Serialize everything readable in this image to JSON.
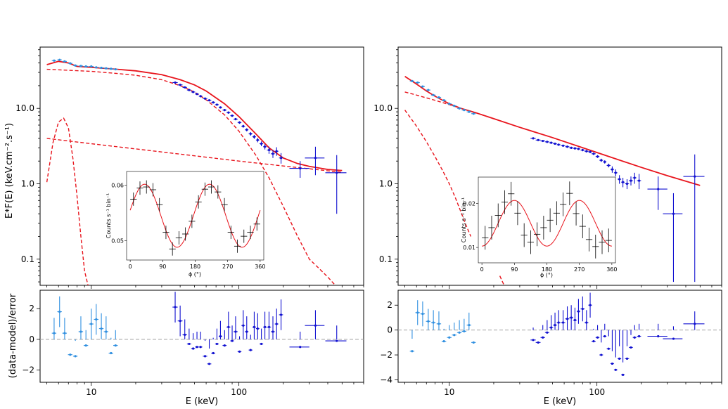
{
  "colors": {
    "model": "#e8141c",
    "data_low": "#2f8fe0",
    "data_high": "#1010d0",
    "inset_data": "#000000",
    "zero_line": "#a0a0a0"
  },
  "chart_data": [
    {
      "panel": "left-spectrum",
      "type": "line",
      "xscale": "log",
      "yscale": "log",
      "xlim": [
        4.5,
        700
      ],
      "ylim": [
        0.045,
        65
      ],
      "ylabel": "E*F(E) (keV.cm⁻².s⁻¹)",
      "yticks": [
        0.1,
        1.0,
        10.0
      ],
      "ytick_labels": [
        "0.1",
        "1.0",
        "10.0"
      ],
      "model_total": {
        "x": [
          5,
          6,
          7,
          8,
          10,
          15,
          20,
          30,
          40,
          50,
          60,
          80,
          100,
          130,
          160,
          200,
          250,
          300,
          400,
          500
        ],
        "y": [
          38,
          42,
          40,
          36,
          35,
          33,
          31.5,
          28,
          24,
          20.5,
          17,
          11.5,
          7.8,
          4.6,
          3.0,
          2.2,
          1.85,
          1.7,
          1.55,
          1.5
        ]
      },
      "model_cutoff": {
        "x": [
          5,
          7,
          10,
          15,
          20,
          30,
          40,
          50,
          60,
          80,
          100,
          130,
          160,
          200,
          250,
          300,
          350,
          400,
          450
        ],
        "y": [
          33,
          32,
          31,
          29,
          27.5,
          24,
          20,
          16.5,
          13,
          8.2,
          5.0,
          2.4,
          1.2,
          0.5,
          0.2,
          0.1,
          0.075,
          0.058,
          0.045
        ]
      },
      "model_powerlaw": {
        "x": [
          5,
          10,
          20,
          50,
          100,
          200,
          500
        ],
        "y": [
          4.0,
          3.4,
          2.9,
          2.35,
          2.0,
          1.72,
          1.42
        ]
      },
      "model_bump": {
        "x": [
          5,
          5.5,
          6,
          6.5,
          7,
          7.5,
          8,
          8.5,
          9,
          9.5
        ],
        "y": [
          1.05,
          3.5,
          6.6,
          7.4,
          5.5,
          2.2,
          0.7,
          0.2,
          0.07,
          0.045
        ]
      },
      "series_low": {
        "x": [
          5.6,
          6.1,
          6.6,
          7.2,
          7.8,
          8.5,
          9.2,
          10,
          10.8,
          11.7,
          12.6,
          13.6,
          14.6
        ],
        "y": [
          43,
          44,
          42,
          39.5,
          37,
          36.5,
          36,
          36,
          35,
          34.5,
          34,
          33.5,
          33
        ]
      },
      "series_high": {
        "x": [
          37,
          40,
          43,
          46,
          49,
          52,
          55,
          59,
          63,
          67,
          71,
          75,
          80,
          85,
          90,
          95,
          101,
          107,
          113,
          120,
          127,
          134,
          142,
          150,
          160,
          170,
          180,
          193,
          260,
          330,
          460
        ],
        "xerr": [
          1.5,
          1.5,
          1.5,
          1.5,
          1.5,
          1.5,
          1.5,
          2,
          2,
          2,
          2,
          2,
          2.5,
          2.5,
          2.5,
          3,
          3,
          3,
          3,
          3.5,
          3.5,
          3.5,
          4,
          4,
          5,
          5,
          5,
          6,
          40,
          50,
          75
        ],
        "y": [
          22,
          20.5,
          19,
          17.5,
          16.5,
          15.5,
          14.5,
          13.5,
          12.8,
          12,
          11.2,
          10.3,
          9.5,
          8.8,
          8.0,
          7.2,
          6.5,
          5.8,
          5.2,
          4.6,
          4.2,
          3.8,
          3.4,
          3.1,
          2.8,
          2.5,
          2.7,
          2.2,
          1.6,
          2.2,
          1.4
        ],
        "yerr": [
          0.4,
          0.4,
          0.4,
          0.4,
          0.4,
          0.4,
          0.35,
          0.35,
          0.35,
          0.3,
          0.3,
          0.3,
          0.3,
          0.3,
          0.25,
          0.25,
          0.25,
          0.25,
          0.25,
          0.25,
          0.25,
          0.25,
          0.25,
          0.25,
          0.3,
          0.3,
          0.35,
          0.35,
          0.4,
          0.9,
          1.0
        ]
      },
      "inset": {
        "xlabel": "ϕ (°)",
        "ylabel": "Counts s⁻¹ bin⁻¹",
        "xlim": [
          -10,
          370
        ],
        "ylim": [
          0.0465,
          0.0625
        ],
        "xticks": [
          0,
          90,
          180,
          270,
          360
        ],
        "yticks": [
          0.05,
          0.06
        ],
        "ytick_labels": [
          "0.05",
          "0.06"
        ],
        "points": {
          "x": [
            9,
            27,
            45,
            63,
            81,
            99,
            117,
            135,
            153,
            171,
            189,
            207,
            225,
            243,
            261,
            279,
            297,
            315,
            333,
            351
          ],
          "y": [
            0.0575,
            0.0595,
            0.0597,
            0.0592,
            0.0565,
            0.0515,
            0.0485,
            0.0505,
            0.0512,
            0.0535,
            0.057,
            0.0593,
            0.0597,
            0.0588,
            0.0565,
            0.0515,
            0.049,
            0.0508,
            0.0515,
            0.053
          ],
          "xerr": 9,
          "yerr": 0.0012
        },
        "model": {
          "mean": 0.0545,
          "amplitude": 0.0057,
          "phase_peak": 40,
          "cycles": 2
        }
      }
    },
    {
      "panel": "left-residuals",
      "type": "scatter",
      "xscale": "log",
      "xlim": [
        4.5,
        700
      ],
      "ylim": [
        -2.8,
        3.2
      ],
      "xlabel": "E (keV)",
      "ylabel": "(data-model)/error",
      "xticks": [
        10,
        100
      ],
      "xtick_labels": [
        "10",
        "100"
      ],
      "yticks": [
        -2,
        0,
        2
      ],
      "ytick_labels": [
        "−2",
        "0",
        "2"
      ],
      "series_low": {
        "x": [
          5.6,
          6.1,
          6.6,
          7.2,
          7.8,
          8.5,
          9.2,
          10,
          10.8,
          11.7,
          12.6,
          13.6,
          14.6
        ],
        "y": [
          0.4,
          1.8,
          0.4,
          -1.0,
          -1.1,
          0.5,
          -0.4,
          1.0,
          1.3,
          0.7,
          0.5,
          -0.9,
          -0.4
        ]
      },
      "series_high": {
        "x": [
          37,
          40,
          43,
          46,
          49,
          52,
          55,
          59,
          63,
          67,
          71,
          75,
          80,
          85,
          90,
          95,
          101,
          107,
          113,
          120,
          127,
          134,
          142,
          150,
          160,
          170,
          180,
          193,
          260,
          330,
          460
        ],
        "xerr": [
          1.5,
          1.5,
          1.5,
          1.5,
          1.5,
          1.5,
          1.5,
          2,
          2,
          2,
          2,
          2,
          2.5,
          2.5,
          2.5,
          3,
          3,
          3,
          3,
          3.5,
          3.5,
          3.5,
          4,
          4,
          5,
          5,
          5,
          6,
          40,
          50,
          75
        ],
        "y": [
          2.1,
          1.2,
          0.3,
          -0.3,
          -0.6,
          -0.5,
          -0.5,
          -1.1,
          -1.6,
          -0.9,
          -0.3,
          0.2,
          -0.4,
          0.8,
          -0.1,
          0.5,
          -0.8,
          0.9,
          0.5,
          -0.7,
          0.8,
          0.7,
          -0.3,
          0.8,
          0.8,
          0.5,
          1.0,
          1.6,
          -0.5,
          0.9,
          -0.1
        ]
      }
    },
    {
      "panel": "right-spectrum",
      "type": "line",
      "xscale": "log",
      "yscale": "log",
      "xlim": [
        4.5,
        700
      ],
      "ylim": [
        0.045,
        65
      ],
      "yticks": [
        0.1,
        1.0,
        10.0
      ],
      "ytick_labels": [
        "0.1",
        "1.0",
        "10.0"
      ],
      "model_total": {
        "x": [
          5,
          6,
          7,
          8,
          10,
          12,
          15,
          20,
          30,
          50,
          100,
          200,
          300,
          500
        ],
        "y": [
          26.5,
          21,
          17,
          14.5,
          11.5,
          10,
          8.8,
          7.3,
          5.6,
          4.1,
          2.6,
          1.65,
          1.28,
          0.95
        ]
      },
      "model_powerlaw": {
        "x": [
          5,
          6,
          8,
          10,
          12,
          15,
          20
        ],
        "y": [
          16.5,
          15,
          12.8,
          11.2,
          10,
          8.8,
          7.3
        ]
      },
      "model_bump": {
        "x": [
          5,
          6,
          7,
          8,
          9,
          10,
          11,
          12,
          13,
          14
        ],
        "y": [
          9.5,
          5.8,
          3.6,
          2.3,
          1.5,
          1.0,
          0.65,
          0.42,
          0.28,
          0.2
        ]
      },
      "model_tail": {
        "x": [
          22,
          23.5
        ],
        "y": [
          0.06,
          0.045
        ]
      },
      "series_low": {
        "x": [
          5.6,
          6.1,
          6.6,
          7.2,
          7.8,
          8.5,
          9.2,
          10,
          10.8,
          11.7,
          12.6,
          13.6,
          14.6
        ],
        "y": [
          23,
          22,
          19.5,
          17.5,
          15,
          14,
          12.8,
          11.5,
          10.8,
          10,
          9.5,
          9.0,
          8.5
        ]
      },
      "series_high": {
        "x": [
          37,
          40,
          43,
          46,
          49,
          52,
          55,
          59,
          63,
          67,
          71,
          75,
          80,
          85,
          90,
          95,
          101,
          107,
          113,
          120,
          127,
          134,
          142,
          150,
          160,
          170,
          180,
          193,
          260,
          330,
          460
        ],
        "xerr": [
          1.5,
          1.5,
          1.5,
          1.5,
          1.5,
          1.5,
          1.5,
          2,
          2,
          2,
          2,
          2,
          2.5,
          2.5,
          2.5,
          3,
          3,
          3,
          3,
          3.5,
          3.5,
          3.5,
          4,
          4,
          5,
          5,
          5,
          6,
          40,
          50,
          75
        ],
        "y": [
          4.0,
          3.8,
          3.7,
          3.6,
          3.5,
          3.4,
          3.3,
          3.2,
          3.1,
          3.0,
          2.95,
          2.9,
          2.8,
          2.7,
          2.65,
          2.5,
          2.3,
          2.05,
          1.95,
          1.75,
          1.55,
          1.4,
          1.15,
          1.05,
          1.0,
          1.1,
          1.2,
          1.1,
          0.85,
          0.4,
          1.25
        ],
        "yerr": [
          0.1,
          0.1,
          0.1,
          0.1,
          0.1,
          0.1,
          0.1,
          0.1,
          0.1,
          0.1,
          0.1,
          0.1,
          0.1,
          0.1,
          0.1,
          0.1,
          0.1,
          0.1,
          0.1,
          0.1,
          0.15,
          0.15,
          0.15,
          0.15,
          0.15,
          0.15,
          0.2,
          0.25,
          0.4,
          0.35,
          1.2
        ]
      },
      "inset": {
        "xlabel": "ϕ (°)",
        "ylabel": "Counts s⁻¹ bin⁻¹",
        "xlim": [
          -10,
          370
        ],
        "ylim": [
          0.0065,
          0.026
        ],
        "xticks": [
          0,
          90,
          180,
          270,
          360
        ],
        "yticks": [
          0.01,
          0.02
        ],
        "ytick_labels": [
          "0.01",
          "0.02"
        ],
        "points": {
          "x": [
            9,
            27,
            45,
            63,
            81,
            99,
            117,
            135,
            153,
            171,
            189,
            207,
            225,
            243,
            261,
            279,
            297,
            315,
            333,
            351
          ],
          "y": [
            0.0122,
            0.0145,
            0.0173,
            0.0203,
            0.0222,
            0.0178,
            0.0128,
            0.0112,
            0.013,
            0.0145,
            0.0162,
            0.0178,
            0.0198,
            0.0223,
            0.0177,
            0.0148,
            0.0118,
            0.0102,
            0.0112,
            0.0116
          ],
          "xerr": 9,
          "yerr": 0.0027
        },
        "model": {
          "mean": 0.0155,
          "amplitude": 0.0052,
          "phase_peak": 90,
          "cycles": 2
        }
      }
    },
    {
      "panel": "right-residuals",
      "type": "scatter",
      "xscale": "log",
      "xlim": [
        4.5,
        700
      ],
      "ylim": [
        -4.2,
        3.2
      ],
      "xlabel": "E (keV)",
      "xticks": [
        10,
        100
      ],
      "xtick_labels": [
        "10",
        "100"
      ],
      "yticks": [
        -4,
        -2,
        0,
        2
      ],
      "ytick_labels": [
        "−4",
        "−2",
        "0",
        "2"
      ],
      "series_low": {
        "x": [
          5.6,
          6.1,
          6.6,
          7.2,
          7.8,
          8.5,
          9.2,
          10,
          10.8,
          11.7,
          12.6,
          13.6,
          14.6
        ],
        "y": [
          -1.7,
          1.4,
          1.3,
          0.7,
          0.6,
          0.5,
          -0.9,
          -0.6,
          -0.4,
          -0.2,
          -0.1,
          0.4,
          -1.0
        ]
      },
      "series_high": {
        "x": [
          37,
          40,
          43,
          46,
          49,
          52,
          55,
          59,
          63,
          67,
          71,
          75,
          80,
          85,
          90,
          95,
          101,
          107,
          113,
          120,
          127,
          134,
          142,
          150,
          160,
          170,
          180,
          193,
          260,
          330,
          460
        ],
        "xerr": [
          1.5,
          1.5,
          1.5,
          1.5,
          1.5,
          1.5,
          1.5,
          2,
          2,
          2,
          2,
          2,
          2.5,
          2.5,
          2.5,
          3,
          3,
          3,
          3,
          3.5,
          3.5,
          3.5,
          4,
          4,
          5,
          5,
          5,
          6,
          40,
          50,
          75
        ],
        "y": [
          -0.8,
          -1.0,
          -0.6,
          -0.2,
          0.2,
          0.4,
          0.6,
          0.6,
          0.9,
          1.0,
          0.8,
          1.5,
          1.7,
          0.6,
          2.0,
          -0.9,
          -0.6,
          -2.0,
          -0.5,
          -1.5,
          -2.7,
          -3.2,
          -2.3,
          -3.6,
          -2.3,
          -1.4,
          -0.6,
          -0.5,
          -0.5,
          -0.7,
          0.5
        ]
      }
    }
  ]
}
